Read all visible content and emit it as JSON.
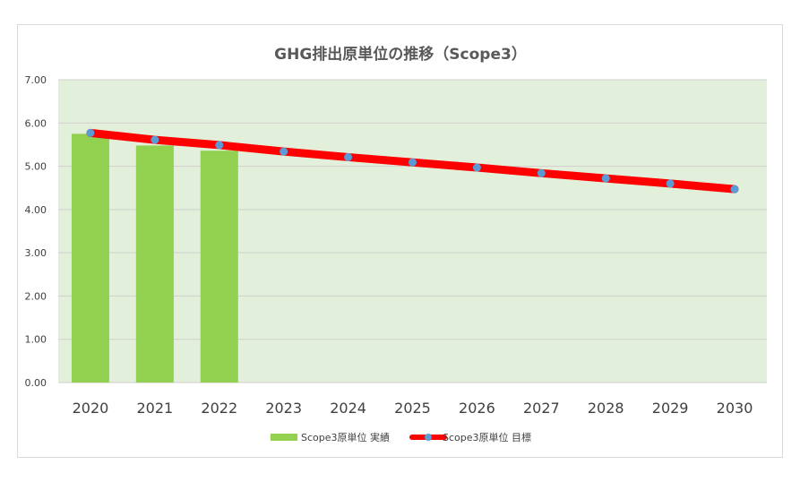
{
  "chart_data": {
    "type": "bar",
    "title": "GHG排出原単位の推移（Scope3）",
    "xlabel": "",
    "ylabel": "",
    "categories": [
      "2020",
      "2021",
      "2022",
      "2023",
      "2024",
      "2025",
      "2026",
      "2027",
      "2028",
      "2029",
      "2030"
    ],
    "ylim": [
      0,
      7
    ],
    "y_ticks": [
      "0.00",
      "1.00",
      "2.00",
      "3.00",
      "4.00",
      "5.00",
      "6.00",
      "7.00"
    ],
    "grid": true,
    "legend_position": "bottom",
    "series": [
      {
        "name": "Scope3原単位 実績",
        "type": "bar",
        "color": "#92d050",
        "values": [
          5.75,
          5.48,
          5.36,
          null,
          null,
          null,
          null,
          null,
          null,
          null,
          null
        ]
      },
      {
        "name": "Scope3原単位 目標",
        "type": "line",
        "color": "#ff0000",
        "marker_color": "#5b9bd5",
        "values": [
          5.77,
          5.61,
          5.49,
          5.34,
          5.21,
          5.09,
          4.97,
          4.84,
          4.72,
          4.6,
          4.47
        ]
      }
    ],
    "plot_background": "#e2efda"
  }
}
